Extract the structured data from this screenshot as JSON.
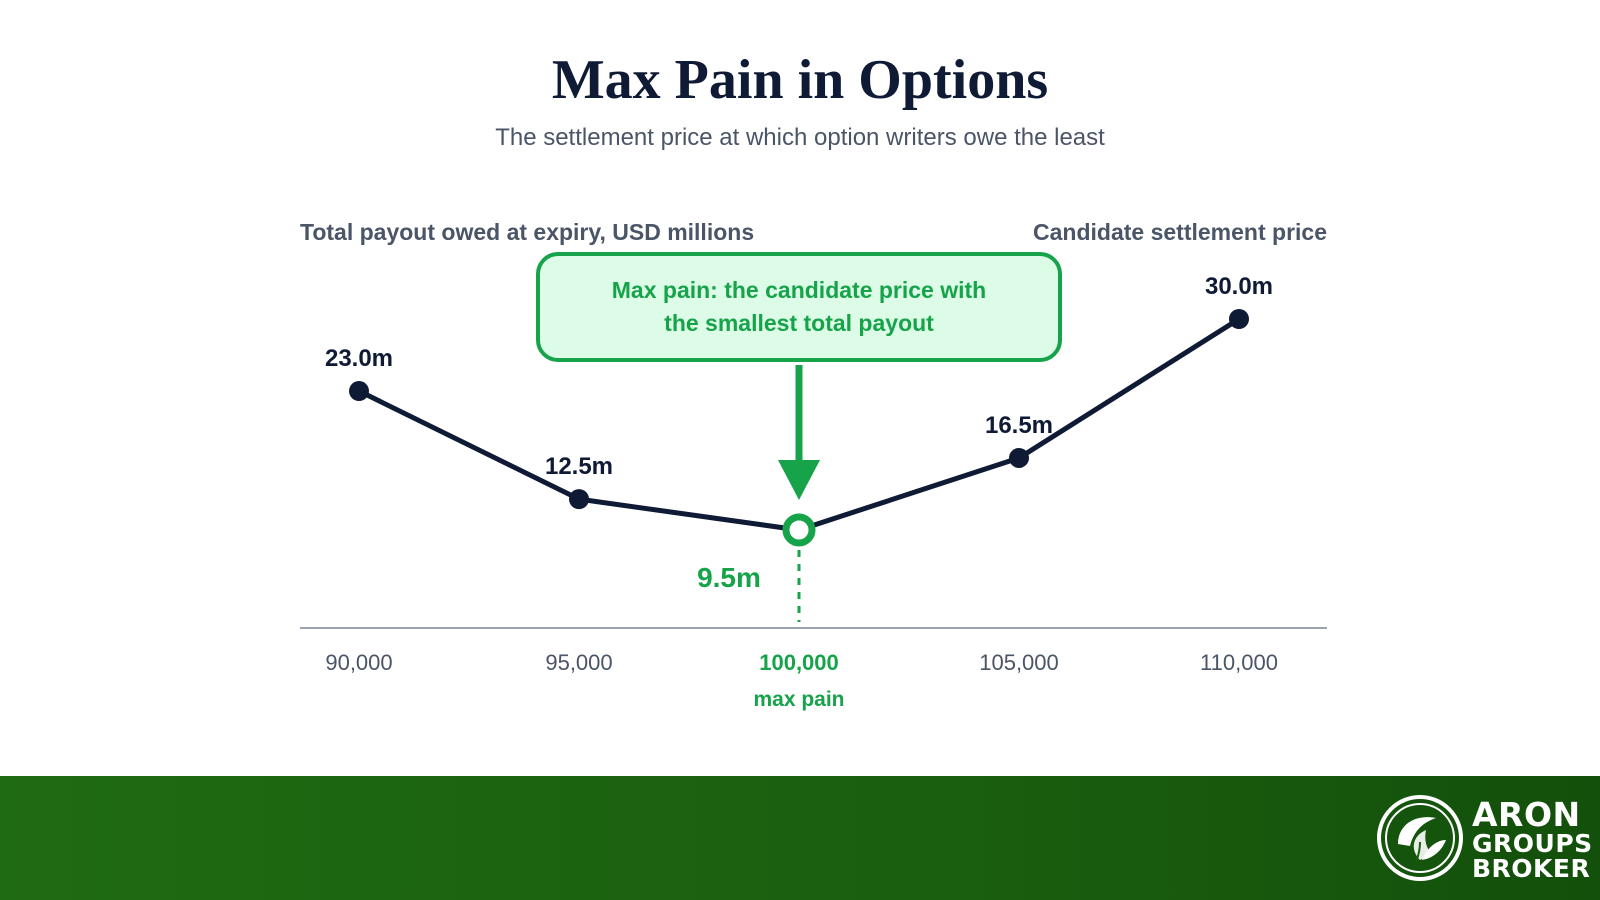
{
  "title": "Max Pain in Options",
  "subtitle": "The settlement price at which option writers owe the least",
  "callout": {
    "line1": "Max pain: the candidate price with",
    "line2": "the smallest total payout"
  },
  "colors": {
    "line": "#0f1a35",
    "highlight": "#16a34a",
    "axis": "#9ca3af",
    "tick": "#4a5568"
  },
  "chart_data": {
    "type": "line",
    "ylabel": "Total payout owed at expiry, USD millions",
    "xlabel": "Candidate settlement price",
    "categories": [
      "90,000",
      "95,000",
      "100,000",
      "105,000",
      "110,000"
    ],
    "values": [
      23.0,
      12.5,
      9.5,
      16.5,
      30.0
    ],
    "data_labels": [
      "23.0m",
      "12.5m",
      "9.5m",
      "16.5m",
      "30.0m"
    ],
    "highlight_index": 2,
    "highlight_note": "max pain",
    "legend": "none",
    "grid": false
  },
  "brand": {
    "line1": "ARON",
    "line2": "GROUPS",
    "line3": "BROKER"
  }
}
